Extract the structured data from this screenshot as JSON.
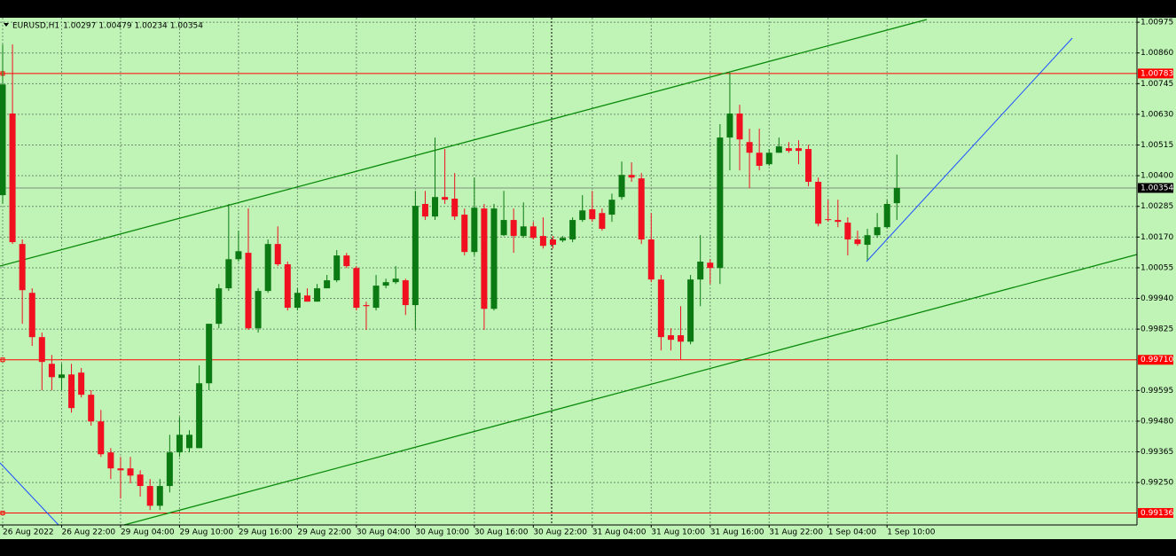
{
  "chart_data": {
    "type": "candlestick",
    "title": "EURUSD,H1",
    "categories": [
      "26 Aug 2022",
      null,
      null,
      null,
      null,
      null,
      "26 Aug 22:00",
      null,
      null,
      null,
      null,
      null,
      "29 Aug 04:00",
      null,
      null,
      null,
      null,
      null,
      "29 Aug 10:00",
      null,
      null,
      null,
      null,
      null,
      "29 Aug 16:00",
      null,
      null,
      null,
      null,
      null,
      "29 Aug 22:00",
      null,
      null,
      null,
      null,
      null,
      "30 Aug 04:00",
      null,
      null,
      null,
      null,
      null,
      "30 Aug 10:00",
      null,
      null,
      null,
      null,
      null,
      "30 Aug 16:00",
      null,
      null,
      null,
      null,
      null,
      "30 Aug 22:00",
      null,
      null,
      null,
      null,
      null,
      "31 Aug 04:00",
      null,
      null,
      null,
      null,
      null,
      "31 Aug 10:00",
      null,
      null,
      null,
      null,
      null,
      "31 Aug 16:00",
      null,
      null,
      null,
      null,
      null,
      "31 Aug 22:00",
      null,
      null,
      null,
      null,
      null,
      "1 Sep 04:00",
      null,
      null,
      null,
      null,
      null,
      "1 Sep 10:00",
      null
    ],
    "open": [
      1.00327,
      1.00633,
      1.00144,
      0.99961,
      0.99795,
      0.99695,
      0.99642,
      0.99655,
      0.99662,
      0.99579,
      0.99479,
      0.99363,
      0.99303,
      0.99303,
      0.9928,
      0.99237,
      0.99163,
      0.99237,
      0.99363,
      0.99379,
      0.99379,
      0.99622,
      0.99845,
      0.99978,
      1.00087,
      1.00111,
      0.99828,
      0.99968,
      1.00144,
      1.00068,
      0.99905,
      0.99951,
      0.99928,
      0.99978,
      1.00008,
      1.00101,
      1.00054,
      0.99915,
      0.99905,
      0.99988,
      1.00001,
      1.00008,
      0.99915,
      1.00294,
      1.00247,
      1.0032,
      1.00314,
      1.00254,
      1.00114,
      1.00277,
      0.99901,
      1.00177,
      1.00234,
      1.00174,
      1.0021,
      1.00174,
      1.00161,
      1.00157,
      1.00161,
      1.00234,
      1.00274,
      1.0026,
      1.00254,
      1.0032,
      1.00403,
      1.0039,
      1.00161,
      1.00011,
      0.99802,
      0.99802,
      0.99778,
      1.00011,
      1.00074,
      1.00054,
      1.00543,
      1.00633,
      1.00526,
      1.00486,
      1.00443,
      1.00486,
      1.00503,
      1.00503,
      1.005,
      1.00377,
      1.00237,
      1.00234,
      1.00224,
      1.00161,
      1.00141,
      1.00177,
      1.00207,
      1.00297
    ],
    "high": [
      1.00892,
      1.00892,
      1.00161,
      0.99978,
      0.99812,
      0.99728,
      0.99695,
      0.99695,
      0.99679,
      0.99596,
      0.99522,
      0.99379,
      0.99346,
      0.99346,
      0.99296,
      0.99263,
      0.99263,
      0.99429,
      0.99496,
      0.99446,
      0.99689,
      0.99845,
      0.99994,
      1.00294,
      1.00194,
      1.00277,
      0.99978,
      1.00161,
      1.0021,
      1.00078,
      0.99978,
      0.99978,
      0.99994,
      1.00028,
      1.00121,
      1.00111,
      1.00061,
      0.99928,
      1.00028,
      1.00014,
      1.00061,
      1.00014,
      1.00343,
      1.00343,
      1.00543,
      1.005,
      1.0041,
      1.00277,
      1.00393,
      1.00294,
      1.00294,
      1.00343,
      1.00277,
      1.003,
      1.00227,
      1.00244,
      1.00174,
      1.00174,
      1.00244,
      1.00327,
      1.00343,
      1.00277,
      1.00333,
      1.00453,
      1.0045,
      1.0041,
      1.0026,
      1.00028,
      0.99828,
      0.99911,
      1.00028,
      1.00177,
      1.00087,
      1.00593,
      1.00786,
      1.00666,
      1.00576,
      1.00576,
      1.005,
      1.00543,
      1.00526,
      1.00533,
      1.00516,
      1.00393,
      1.0031,
      1.0031,
      1.00244,
      1.00194,
      1.00201,
      1.0026,
      1.0031,
      1.00479
    ],
    "low": [
      1.00294,
      1.00144,
      0.99845,
      0.99762,
      0.99596,
      0.99596,
      0.99596,
      0.99512,
      0.99569,
      0.99463,
      0.99346,
      0.99263,
      0.9919,
      0.99247,
      0.99197,
      0.99147,
      0.99147,
      0.99213,
      0.99346,
      0.99363,
      0.99379,
      0.99596,
      0.99828,
      0.99968,
      1.00078,
      0.99822,
      0.99812,
      0.99961,
      1.00061,
      0.99895,
      0.99895,
      0.99928,
      0.99928,
      0.99978,
      1.00001,
      1.00054,
      0.99895,
      0.99822,
      0.99895,
      0.99978,
      0.99994,
      0.99878,
      0.99822,
      1.00234,
      1.00234,
      1.00294,
      1.00234,
      1.00101,
      1.00101,
      0.99822,
      0.99895,
      1.00174,
      1.00111,
      1.00167,
      1.00161,
      1.00127,
      1.00127,
      1.00151,
      1.00151,
      1.00227,
      1.00227,
      1.00194,
      1.00227,
      1.0031,
      1.00377,
      1.00144,
      1.00001,
      0.99745,
      0.99745,
      0.99712,
      0.99768,
      0.99911,
      0.99994,
      0.99994,
      1.0042,
      1.0042,
      1.00353,
      1.0042,
      1.00437,
      1.00486,
      1.00486,
      1.00443,
      1.0036,
      1.0021,
      1.00227,
      1.00207,
      1.00101,
      1.00137,
      1.00084,
      1.00167,
      1.00201,
      1.00234
    ],
    "close": [
      1.00742,
      1.00151,
      0.99971,
      0.99795,
      0.99702,
      0.99645,
      0.99655,
      0.99529,
      0.99579,
      0.99479,
      0.99356,
      0.99303,
      0.99296,
      0.99276,
      0.99237,
      0.99163,
      0.99237,
      0.99363,
      0.99429,
      0.99429,
      0.99622,
      0.99845,
      0.99978,
      1.00087,
      1.00117,
      0.99828,
      0.99968,
      1.00144,
      1.00068,
      0.99905,
      0.99961,
      0.99928,
      0.99978,
      1.00008,
      1.00101,
      1.00061,
      0.99905,
      0.99911,
      0.99988,
      1.00001,
      1.00014,
      0.99915,
      1.00287,
      1.00247,
      1.0032,
      1.0031,
      1.00247,
      1.00114,
      1.0028,
      0.99901,
      1.00277,
      1.00234,
      1.00174,
      1.0021,
      1.00167,
      1.00137,
      1.00141,
      1.00167,
      1.00234,
      1.0027,
      1.00237,
      1.00201,
      1.0031,
      1.00403,
      1.00393,
      1.00161,
      1.00011,
      0.99795,
      0.99785,
      0.99778,
      1.00011,
      1.00078,
      1.00054,
      1.00543,
      1.00633,
      1.00536,
      1.00486,
      1.00437,
      1.00486,
      1.0051,
      1.00493,
      1.00493,
      1.00377,
      1.0022,
      1.00234,
      1.00227,
      1.00161,
      1.00144,
      1.00177,
      1.00207,
      1.00294,
      1.00354
    ],
    "up_color": "#0b7a12",
    "down_color": "#f01020",
    "background": "#bff4b6",
    "ylim": [
      0.99091,
      1.00992
    ],
    "yticks": [
      1.00975,
      {
        "value": 1.0086,
        "label": "1.00860"
      },
      1.00745,
      {
        "value": 1.0063,
        "label": "1.00630"
      },
      1.00515,
      {
        "value": 1.004,
        "label": "1.00400"
      },
      1.00285,
      {
        "value": 1.0017,
        "label": "1.00170"
      },
      1.00055,
      {
        "value": 0.9994,
        "label": "0.99940"
      },
      0.99825,
      0.99595,
      {
        "value": 0.9948,
        "label": "0.99480"
      },
      0.99365,
      {
        "value": 0.9925,
        "label": "0.99250"
      }
    ],
    "grid": true,
    "hlines": [
      1.00783,
      {
        "value": 0.9971,
        "label": "0.99710"
      },
      0.99136
    ],
    "hline_color": "#ff0000"
  }
}
